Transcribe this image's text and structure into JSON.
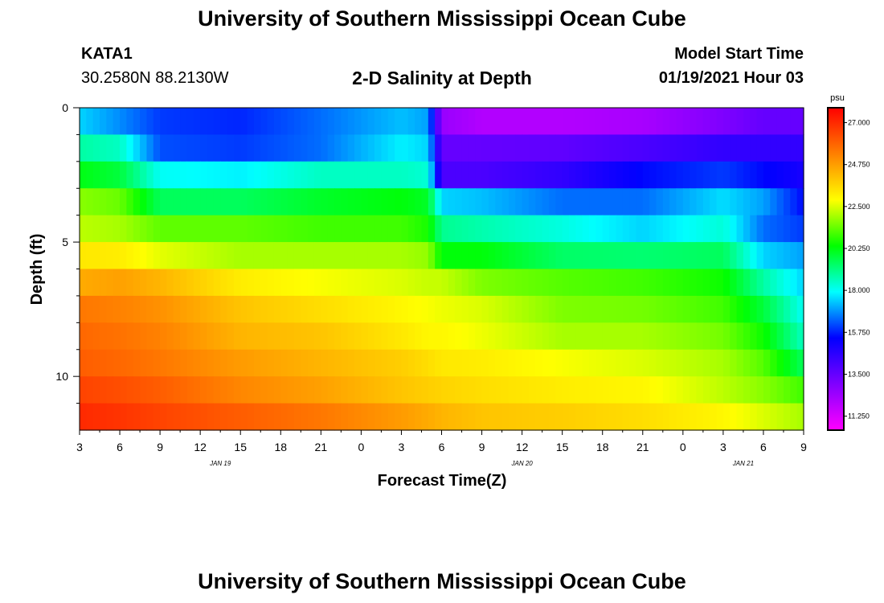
{
  "header": {
    "title": "University of Southern Mississippi Ocean Cube",
    "station": "KATA1",
    "coordinates": "30.2580N 88.2130W",
    "subtitle": "2-D Salinity at Depth",
    "model_start_label": "Model Start Time",
    "model_start_value": "01/19/2021 Hour 03"
  },
  "footer": {
    "title": "University of Southern Mississippi Ocean Cube"
  },
  "colorbar": {
    "unit": "psu",
    "tick_labels": [
      "27.000",
      "24.750",
      "22.500",
      "20.250",
      "18.000",
      "15.750",
      "13.500",
      "11.250"
    ],
    "tick_values": [
      27.0,
      24.75,
      22.5,
      20.25,
      18.0,
      15.75,
      13.5,
      11.25
    ],
    "range": [
      10.5,
      27.8
    ],
    "palette": [
      "#ff00ff",
      "#8000ff",
      "#0000ff",
      "#00ffff",
      "#00ff00",
      "#ffff00",
      "#ff8000",
      "#ff0000"
    ]
  },
  "chart_data": {
    "type": "heatmap",
    "xlabel": "Forecast Time(Z)",
    "ylabel": "Depth (ft)",
    "x_tick_labels": [
      "3",
      "6",
      "9",
      "12",
      "15",
      "18",
      "21",
      "0",
      "3",
      "6",
      "9",
      "12",
      "15",
      "18",
      "21",
      "0",
      "3",
      "6",
      "9"
    ],
    "x_hours_range": [
      3,
      57
    ],
    "date_labels": [
      {
        "text": "JAN 19",
        "hour": 13.5
      },
      {
        "text": "JAN 20",
        "hour": 36
      },
      {
        "text": "JAN 21",
        "hour": 52.5
      }
    ],
    "y_tick_labels": [
      "0",
      "5",
      "10"
    ],
    "y_tick_values": [
      0,
      5,
      10
    ],
    "ylim": [
      0,
      12
    ],
    "depth_levels_ft": [
      0.5,
      1.5,
      2.5,
      3.5,
      4.5,
      5.5,
      6.5,
      7.5,
      8.5,
      9.5,
      10.5,
      11.5
    ],
    "time_knots_hours": [
      3,
      6,
      9,
      15,
      21,
      27,
      29,
      30,
      33,
      39,
      45,
      51,
      54,
      57
    ],
    "salinity_rows_psu": [
      [
        17.5,
        16.8,
        16.0,
        15.8,
        16.5,
        17.3,
        17.0,
        12.5,
        12.0,
        12.0,
        12.2,
        13.0,
        13.5,
        13.5
      ],
      [
        18.8,
        18.5,
        16.2,
        16.0,
        16.5,
        17.8,
        17.5,
        13.5,
        13.5,
        13.6,
        14.0,
        14.5,
        14.5,
        14.5
      ],
      [
        20.2,
        19.8,
        18.0,
        17.8,
        18.5,
        18.5,
        18.3,
        14.0,
        14.0,
        14.5,
        15.5,
        16.0,
        15.5,
        15.0
      ],
      [
        21.7,
        21.4,
        19.5,
        19.5,
        20.0,
        20.3,
        20.0,
        17.5,
        17.3,
        16.5,
        16.5,
        17.6,
        17.0,
        15.5
      ],
      [
        22.2,
        22.0,
        21.3,
        21.3,
        21.0,
        21.0,
        20.6,
        19.0,
        18.7,
        18.2,
        17.5,
        18.3,
        16.5,
        16.0
      ],
      [
        23.3,
        23.2,
        22.6,
        22.0,
        22.0,
        22.0,
        21.8,
        20.3,
        20.3,
        19.4,
        19.3,
        19.5,
        17.5,
        17.0
      ],
      [
        24.5,
        24.7,
        24.3,
        23.2,
        22.8,
        22.5,
        22.3,
        22.3,
        21.6,
        21.2,
        21.0,
        20.5,
        18.8,
        17.5
      ],
      [
        25.5,
        25.3,
        25.0,
        24.0,
        23.5,
        23.0,
        22.8,
        22.7,
        22.5,
        21.6,
        21.5,
        21.0,
        19.8,
        18.0
      ],
      [
        25.8,
        25.6,
        25.3,
        24.3,
        24.0,
        23.3,
        23.0,
        23.0,
        22.7,
        22.0,
        22.0,
        21.5,
        20.5,
        18.5
      ],
      [
        26.0,
        25.8,
        25.5,
        24.8,
        24.3,
        23.8,
        23.5,
        23.3,
        23.2,
        22.8,
        22.5,
        22.0,
        21.2,
        19.5
      ],
      [
        26.5,
        26.3,
        26.0,
        25.2,
        24.7,
        24.0,
        23.8,
        23.7,
        23.5,
        23.2,
        23.0,
        22.2,
        21.7,
        21.0
      ],
      [
        27.0,
        26.8,
        26.5,
        26.0,
        25.5,
        24.8,
        24.5,
        24.3,
        24.0,
        23.8,
        23.5,
        23.0,
        22.5,
        22.0
      ]
    ],
    "grid": false
  }
}
